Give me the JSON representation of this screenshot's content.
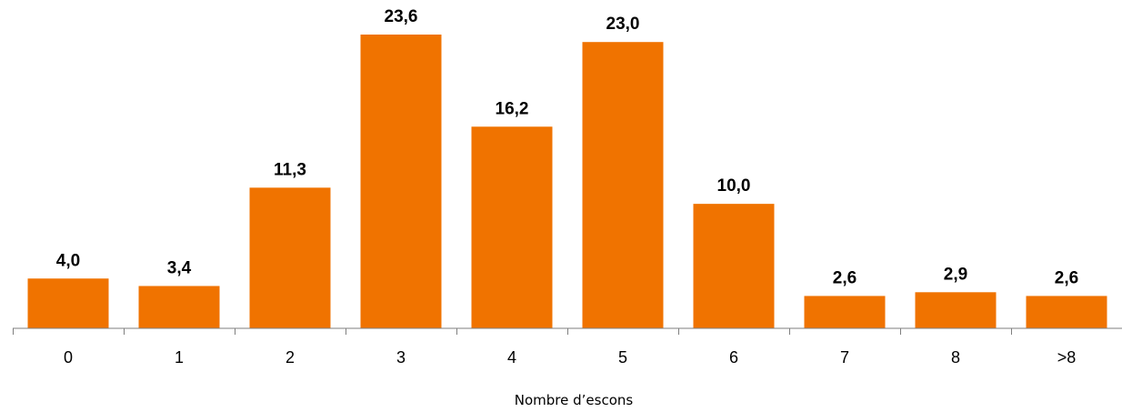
{
  "chart_data": {
    "type": "bar",
    "title": "",
    "xlabel": "Nombre d’escons",
    "ylabel": "",
    "categories": [
      "0",
      "1",
      "2",
      "3",
      "4",
      "5",
      "6",
      "7",
      "8",
      ">8"
    ],
    "values": [
      4.0,
      3.4,
      11.3,
      23.6,
      16.2,
      23.0,
      10.0,
      2.6,
      2.9,
      2.6
    ],
    "value_labels": [
      "4,0",
      "3,4",
      "11,3",
      "23,6",
      "16,2",
      "23,0",
      "10,0",
      "2,6",
      "2,9",
      "2,6"
    ],
    "ylim": [
      0,
      23.6
    ],
    "grid": false,
    "legend": "none",
    "colors": {
      "bar": "#F07300",
      "axis": "#7f7f7f"
    }
  }
}
